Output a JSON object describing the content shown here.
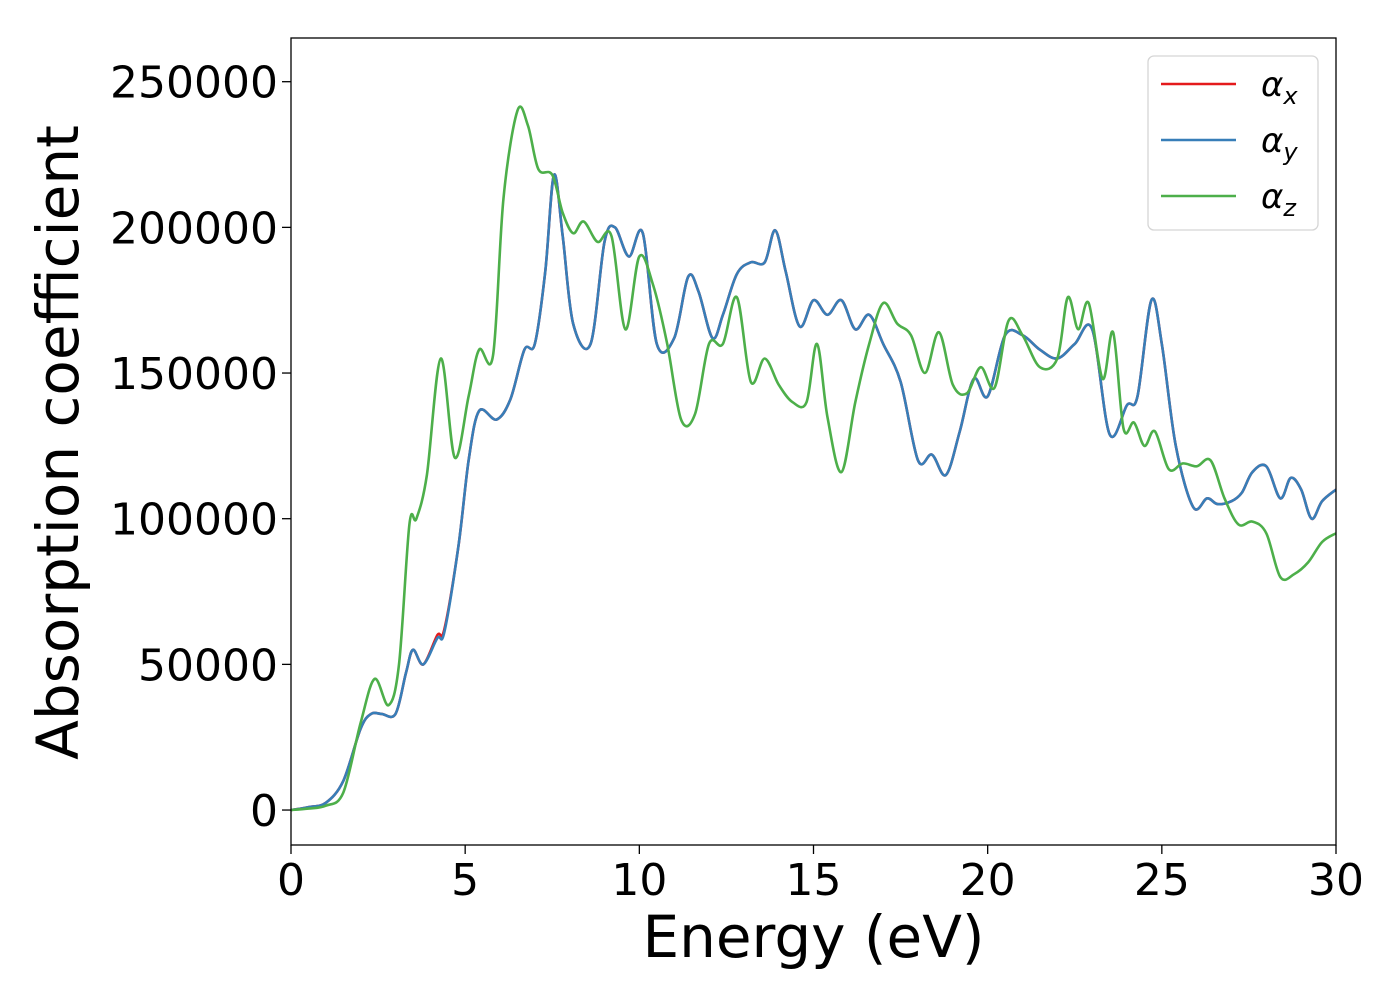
{
  "chart_data": {
    "type": "line",
    "title": "",
    "xlabel": "Energy (eV)",
    "ylabel": "Absorption coefficient",
    "xlim": [
      0,
      30
    ],
    "ylim": [
      -12000,
      265000
    ],
    "xticks": [
      "0",
      "5",
      "10",
      "15",
      "20",
      "25",
      "30"
    ],
    "yticks": [
      "0",
      "50000",
      "100000",
      "150000",
      "200000",
      "250000"
    ],
    "grid": false,
    "legend_position": "top-right",
    "series": [
      {
        "name": "α_x",
        "legend_main": "α",
        "legend_sub": "x",
        "color": "#e41a1c",
        "x": [
          0,
          0.5,
          1,
          1.5,
          2,
          2.3,
          2.6,
          3,
          3.3,
          3.5,
          3.8,
          4.2,
          4.4,
          4.8,
          5.1,
          5.4,
          5.9,
          6.3,
          6.7,
          7,
          7.3,
          7.55,
          7.8,
          8.1,
          8.6,
          9,
          9.3,
          9.7,
          10.1,
          10.5,
          11,
          11.4,
          11.7,
          12.1,
          12.4,
          12.8,
          13.2,
          13.6,
          13.9,
          14.2,
          14.6,
          15,
          15.4,
          15.8,
          16.2,
          16.6,
          17,
          17.5,
          18,
          18.4,
          18.8,
          19.2,
          19.6,
          20,
          20.5,
          21,
          21.5,
          22,
          22.5,
          23,
          23.5,
          24,
          24.3,
          24.7,
          25,
          25.4,
          25.9,
          26.3,
          26.6,
          27,
          27.3,
          27.6,
          28,
          28.4,
          28.7,
          29,
          29.3,
          29.6,
          30
        ],
        "y": [
          0,
          1000,
          2500,
          10000,
          28000,
          33000,
          33000,
          33000,
          47000,
          55000,
          50000,
          60000,
          62000,
          90000,
          120000,
          137000,
          134000,
          141000,
          158000,
          160000,
          185000,
          218000,
          197000,
          167000,
          160000,
          195000,
          200000,
          190000,
          198000,
          160000,
          162000,
          183000,
          178000,
          162000,
          170000,
          184000,
          188000,
          188000,
          199000,
          185000,
          166000,
          175000,
          170000,
          175000,
          165000,
          170000,
          160000,
          147000,
          120000,
          122000,
          115000,
          130000,
          148000,
          142000,
          163000,
          163000,
          158000,
          155000,
          160000,
          165000,
          129000,
          139000,
          142000,
          175000,
          160000,
          125000,
          104000,
          107000,
          105000,
          106000,
          109000,
          116000,
          118000,
          107000,
          114000,
          110000,
          100000,
          106000,
          110000
        ]
      },
      {
        "name": "α_y",
        "legend_main": "α",
        "legend_sub": "y",
        "color": "#377eb8",
        "x": [
          0,
          0.5,
          1,
          1.5,
          2,
          2.3,
          2.6,
          3,
          3.3,
          3.5,
          3.8,
          4.2,
          4.4,
          4.8,
          5.1,
          5.4,
          5.9,
          6.3,
          6.7,
          7,
          7.3,
          7.55,
          7.8,
          8.1,
          8.6,
          9,
          9.3,
          9.7,
          10.1,
          10.5,
          11,
          11.4,
          11.7,
          12.1,
          12.4,
          12.8,
          13.2,
          13.6,
          13.9,
          14.2,
          14.6,
          15,
          15.4,
          15.8,
          16.2,
          16.6,
          17,
          17.5,
          18,
          18.4,
          18.8,
          19.2,
          19.6,
          20,
          20.5,
          21,
          21.5,
          22,
          22.5,
          23,
          23.5,
          24,
          24.3,
          24.7,
          25,
          25.4,
          25.9,
          26.3,
          26.6,
          27,
          27.3,
          27.6,
          28,
          28.4,
          28.7,
          29,
          29.3,
          29.6,
          30
        ],
        "y": [
          0,
          1000,
          2500,
          10000,
          28000,
          33000,
          33000,
          33000,
          47000,
          55000,
          50000,
          59000,
          61000,
          90000,
          120000,
          137000,
          134000,
          141000,
          158000,
          160000,
          185000,
          218000,
          197000,
          167000,
          160000,
          195000,
          200000,
          190000,
          198000,
          160000,
          162000,
          183000,
          178000,
          162000,
          170000,
          184000,
          188000,
          188000,
          199000,
          185000,
          166000,
          175000,
          170000,
          175000,
          165000,
          170000,
          160000,
          147000,
          120000,
          122000,
          115000,
          130000,
          148000,
          142000,
          163000,
          163000,
          158000,
          155000,
          160000,
          165000,
          129000,
          139000,
          142000,
          175000,
          160000,
          125000,
          104000,
          107000,
          105000,
          106000,
          109000,
          116000,
          118000,
          107000,
          114000,
          110000,
          100000,
          106000,
          110000
        ]
      },
      {
        "name": "α_z",
        "legend_main": "α",
        "legend_sub": "z",
        "color": "#4daf4a",
        "x": [
          0,
          0.5,
          1,
          1.5,
          2,
          2.4,
          2.8,
          3.1,
          3.4,
          3.6,
          3.9,
          4.3,
          4.7,
          5.1,
          5.4,
          5.8,
          6.1,
          6.5,
          6.8,
          7.1,
          7.5,
          7.8,
          8.1,
          8.4,
          8.8,
          9.2,
          9.6,
          10,
          10.4,
          10.8,
          11.2,
          11.6,
          12,
          12.4,
          12.8,
          13.2,
          13.6,
          14,
          14.4,
          14.8,
          15.1,
          15.4,
          15.8,
          16.2,
          16.6,
          17,
          17.4,
          17.8,
          18.2,
          18.6,
          19,
          19.4,
          19.8,
          20.2,
          20.6,
          21,
          21.5,
          22,
          22.3,
          22.6,
          22.9,
          23.3,
          23.6,
          23.9,
          24.2,
          24.5,
          24.8,
          25.2,
          25.6,
          26,
          26.4,
          26.8,
          27.2,
          27.6,
          28,
          28.4,
          28.8,
          29.2,
          29.6,
          30
        ],
        "y": [
          0,
          500,
          1500,
          6000,
          30000,
          45000,
          36000,
          50000,
          98000,
          100000,
          115000,
          155000,
          121000,
          142000,
          158000,
          156000,
          210000,
          240000,
          235000,
          220000,
          218000,
          205000,
          198000,
          202000,
          195000,
          197000,
          165000,
          190000,
          180000,
          160000,
          134000,
          136000,
          160000,
          160000,
          176000,
          147000,
          155000,
          146000,
          140000,
          140000,
          160000,
          135000,
          116000,
          140000,
          160000,
          174000,
          167000,
          163000,
          150000,
          164000,
          146000,
          143000,
          152000,
          145000,
          168000,
          163000,
          152000,
          155000,
          176000,
          165000,
          174000,
          148000,
          164000,
          131000,
          133000,
          125000,
          130000,
          117000,
          119000,
          118000,
          120000,
          107000,
          98000,
          99000,
          95000,
          80000,
          81000,
          85000,
          92000,
          95000
        ]
      }
    ]
  }
}
